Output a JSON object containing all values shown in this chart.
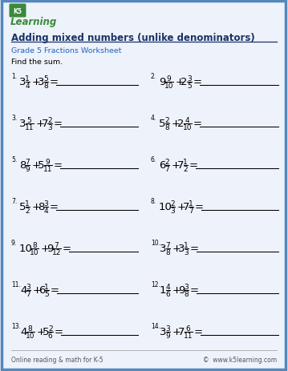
{
  "title": "Adding mixed numbers (unlike denominators)",
  "subtitle": "Grade 5 Fractions Worksheet",
  "instruction": "Find the sum.",
  "footer_left": "Online reading & math for K-5",
  "footer_right": "©  www.k5learning.com",
  "bg": "#eef2fb",
  "border_color": "#5588bb",
  "problems": [
    {
      "num": "1",
      "w1": "3",
      "n1": "1",
      "d1": "4",
      "w2": "3",
      "n2": "5",
      "d2": "8"
    },
    {
      "num": "2",
      "w1": "9",
      "n1": "9",
      "d1": "10",
      "w2": "2",
      "n2": "3",
      "d2": "5"
    },
    {
      "num": "3",
      "w1": "3",
      "n1": "5",
      "d1": "11",
      "w2": "7",
      "n2": "2",
      "d2": "3"
    },
    {
      "num": "4",
      "w1": "5",
      "n1": "2",
      "d1": "8",
      "w2": "2",
      "n2": "4",
      "d2": "10"
    },
    {
      "num": "5",
      "w1": "8",
      "n1": "7",
      "d1": "9",
      "w2": "5",
      "n2": "9",
      "d2": "11"
    },
    {
      "num": "6",
      "w1": "6",
      "n1": "2",
      "d1": "7",
      "w2": "7",
      "n2": "1",
      "d2": "2"
    },
    {
      "num": "7",
      "w1": "5",
      "n1": "1",
      "d1": "2",
      "w2": "8",
      "n2": "3",
      "d2": "4"
    },
    {
      "num": "8",
      "w1": "10",
      "n1": "2",
      "d1": "3",
      "w2": "7",
      "n2": "1",
      "d2": "7"
    },
    {
      "num": "9",
      "w1": "10",
      "n1": "8",
      "d1": "10",
      "w2": "9",
      "n2": "7",
      "d2": "12"
    },
    {
      "num": "10",
      "w1": "3",
      "n1": "7",
      "d1": "8",
      "w2": "3",
      "n2": "1",
      "d2": "3"
    },
    {
      "num": "11",
      "w1": "4",
      "n1": "3",
      "d1": "7",
      "w2": "6",
      "n2": "1",
      "d2": "5"
    },
    {
      "num": "12",
      "w1": "1",
      "n1": "4",
      "d1": "6",
      "w2": "9",
      "n2": "3",
      "d2": "8"
    },
    {
      "num": "13",
      "w1": "4",
      "n1": "8",
      "d1": "10",
      "w2": "5",
      "n2": "2",
      "d2": "6"
    },
    {
      "num": "14",
      "w1": "3",
      "n1": "3",
      "d1": "9",
      "w2": "7",
      "n2": "6",
      "d2": "11"
    }
  ]
}
